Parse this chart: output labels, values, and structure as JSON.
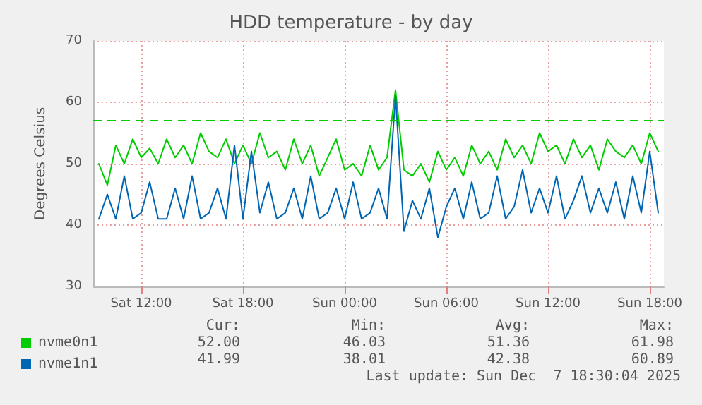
{
  "chart_data": {
    "type": "line",
    "title": "HDD temperature - by day",
    "ylabel": "Degrees Celsius",
    "x": [
      "2025-12-06T09:30",
      "2025-12-06T10:00",
      "2025-12-06T10:30",
      "2025-12-06T11:00",
      "2025-12-06T11:30",
      "2025-12-06T12:00",
      "2025-12-06T12:30",
      "2025-12-06T13:00",
      "2025-12-06T13:30",
      "2025-12-06T14:00",
      "2025-12-06T14:30",
      "2025-12-06T15:00",
      "2025-12-06T15:30",
      "2025-12-06T16:00",
      "2025-12-06T16:30",
      "2025-12-06T17:00",
      "2025-12-06T17:30",
      "2025-12-06T18:00",
      "2025-12-06T18:30",
      "2025-12-06T19:00",
      "2025-12-06T19:30",
      "2025-12-06T20:00",
      "2025-12-06T20:30",
      "2025-12-06T21:00",
      "2025-12-06T21:30",
      "2025-12-06T22:00",
      "2025-12-06T22:30",
      "2025-12-06T23:00",
      "2025-12-06T23:30",
      "2025-12-07T00:00",
      "2025-12-07T00:30",
      "2025-12-07T01:00",
      "2025-12-07T01:30",
      "2025-12-07T02:00",
      "2025-12-07T02:30",
      "2025-12-07T03:00",
      "2025-12-07T03:30",
      "2025-12-07T04:00",
      "2025-12-07T04:30",
      "2025-12-07T05:00",
      "2025-12-07T05:30",
      "2025-12-07T06:00",
      "2025-12-07T06:30",
      "2025-12-07T07:00",
      "2025-12-07T07:30",
      "2025-12-07T08:00",
      "2025-12-07T08:30",
      "2025-12-07T09:00",
      "2025-12-07T09:30",
      "2025-12-07T10:00",
      "2025-12-07T10:30",
      "2025-12-07T11:00",
      "2025-12-07T11:30",
      "2025-12-07T12:00",
      "2025-12-07T12:30",
      "2025-12-07T13:00",
      "2025-12-07T13:30",
      "2025-12-07T14:00",
      "2025-12-07T14:30",
      "2025-12-07T15:00",
      "2025-12-07T15:30",
      "2025-12-07T16:00",
      "2025-12-07T16:30",
      "2025-12-07T17:00",
      "2025-12-07T17:30",
      "2025-12-07T18:00",
      "2025-12-07T18:30"
    ],
    "series": [
      {
        "name": "nvme0n1",
        "color": "#00cc00",
        "values": [
          50,
          46.5,
          53,
          50,
          54,
          51,
          52.5,
          50,
          54,
          51,
          53,
          50,
          55,
          52,
          51,
          54,
          50,
          53,
          50,
          55,
          51,
          52,
          49,
          54,
          50,
          53,
          48,
          51,
          54,
          49,
          50,
          48,
          53,
          49,
          51,
          62,
          49,
          48,
          50,
          47,
          52,
          49,
          51,
          48,
          53,
          50,
          52,
          49,
          54,
          51,
          53,
          50,
          55,
          52,
          53,
          50,
          54,
          51,
          53,
          49,
          54,
          52,
          51,
          53,
          50,
          55,
          52
        ]
      },
      {
        "name": "nvme1n1",
        "color": "#0066b3",
        "values": [
          41,
          45,
          41,
          48,
          41,
          42,
          47,
          41,
          41,
          46,
          41,
          48,
          41,
          42,
          46,
          41,
          53,
          41,
          52,
          42,
          47,
          41,
          42,
          46,
          41,
          48,
          41,
          42,
          46,
          41,
          47,
          41,
          42,
          46,
          41,
          61,
          39,
          44,
          41,
          46,
          38,
          43,
          46,
          41,
          47,
          41,
          42,
          48,
          41,
          43,
          49,
          42,
          46,
          42,
          48,
          41,
          44,
          48,
          42,
          46,
          42,
          47,
          41,
          48,
          42,
          52,
          42
        ]
      }
    ],
    "xlim": [
      "2025-12-06T09:10",
      "2025-12-07T18:50"
    ],
    "xticks": [
      {
        "value": "2025-12-06T12:00",
        "label": "Sat 12:00"
      },
      {
        "value": "2025-12-06T18:00",
        "label": "Sat 18:00"
      },
      {
        "value": "2025-12-07T00:00",
        "label": "Sun 00:00"
      },
      {
        "value": "2025-12-07T06:00",
        "label": "Sun 06:00"
      },
      {
        "value": "2025-12-07T12:00",
        "label": "Sun 12:00"
      },
      {
        "value": "2025-12-07T18:00",
        "label": "Sun 18:00"
      }
    ],
    "ylim": [
      30,
      70
    ],
    "yticks": [
      30,
      40,
      50,
      60,
      70
    ],
    "ref_lines": [
      {
        "axis": "y",
        "value": 57,
        "color": "#00cc00",
        "line_style": "dashed"
      }
    ],
    "annotations": [
      "Cur:",
      "Min:",
      "Avg:",
      "Max:",
      "52.00",
      "46.03",
      "51.36",
      "61.98",
      "41.99",
      "38.01",
      "42.38",
      "60.89",
      "Last update: Sun Dec  7 18:30:04 2025"
    ],
    "grid": true,
    "legend": "bottom left",
    "marker": "none",
    "line_style": "solid"
  }
}
